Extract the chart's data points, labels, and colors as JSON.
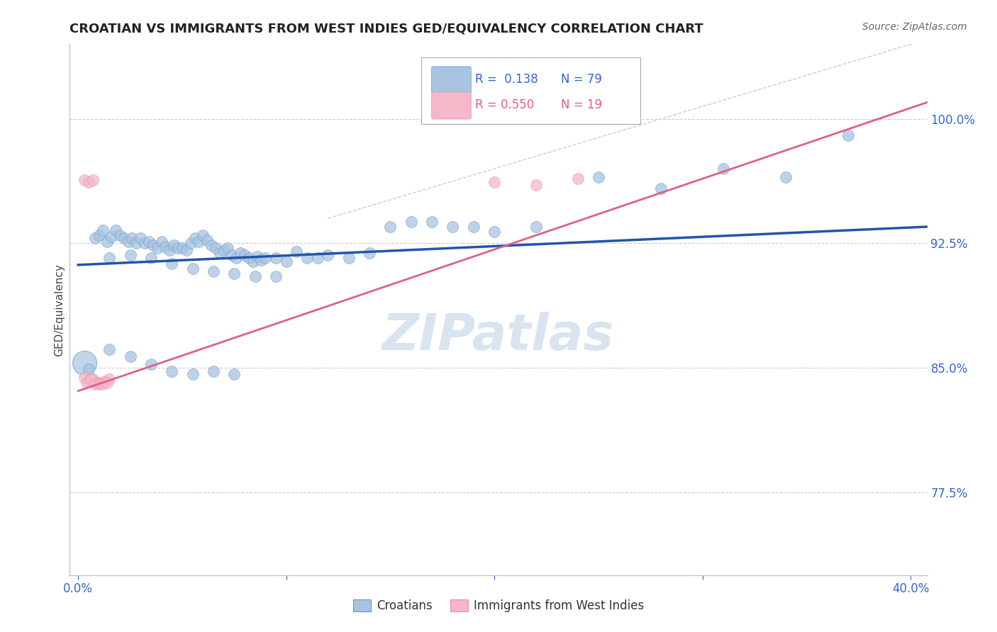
{
  "title": "CROATIAN VS IMMIGRANTS FROM WEST INDIES GED/EQUIVALENCY CORRELATION CHART",
  "source": "Source: ZipAtlas.com",
  "ylabel": "GED/Equivalency",
  "ytick_values": [
    0.775,
    0.85,
    0.925,
    1.0
  ],
  "ytick_labels": [
    "77.5%",
    "85.0%",
    "92.5%",
    "100.0%"
  ],
  "xlim": [
    -0.004,
    0.408
  ],
  "ylim": [
    0.725,
    1.045
  ],
  "blue_color": "#A8C4E0",
  "blue_edge_color": "#6699CC",
  "pink_color": "#F4B8C8",
  "pink_edge_color": "#E88FAA",
  "blue_line_color": "#2255AA",
  "pink_line_color": "#E06080",
  "diag_line_color": "#CCCCCC",
  "watermark_color": "#D8E4F0",
  "blue_line_x": [
    0.0,
    0.408
  ],
  "blue_line_y": [
    0.912,
    0.935
  ],
  "pink_line_x": [
    0.0,
    0.408
  ],
  "pink_line_y": [
    0.836,
    1.01
  ],
  "diag_line_x": [
    0.12,
    0.408
  ],
  "diag_line_y": [
    0.94,
    1.048
  ],
  "cr_x": [
    0.008,
    0.01,
    0.012,
    0.014,
    0.016,
    0.018,
    0.02,
    0.022,
    0.024,
    0.026,
    0.028,
    0.03,
    0.032,
    0.034,
    0.036,
    0.038,
    0.04,
    0.042,
    0.044,
    0.046,
    0.048,
    0.05,
    0.052,
    0.054,
    0.056,
    0.058,
    0.06,
    0.062,
    0.064,
    0.066,
    0.068,
    0.07,
    0.072,
    0.074,
    0.076,
    0.078,
    0.08,
    0.082,
    0.084,
    0.086,
    0.088,
    0.09,
    0.095,
    0.1,
    0.105,
    0.11,
    0.115,
    0.12,
    0.13,
    0.14,
    0.15,
    0.16,
    0.17,
    0.18,
    0.19,
    0.2,
    0.22,
    0.25,
    0.28,
    0.31,
    0.34,
    0.37,
    0.005,
    0.015,
    0.025,
    0.035,
    0.045,
    0.055,
    0.065,
    0.075,
    0.085,
    0.095,
    0.015,
    0.025,
    0.035,
    0.045,
    0.055,
    0.065,
    0.075
  ],
  "cr_y": [
    0.928,
    0.93,
    0.933,
    0.926,
    0.929,
    0.933,
    0.93,
    0.928,
    0.926,
    0.928,
    0.925,
    0.928,
    0.925,
    0.926,
    0.924,
    0.922,
    0.926,
    0.923,
    0.921,
    0.924,
    0.922,
    0.922,
    0.921,
    0.925,
    0.928,
    0.926,
    0.93,
    0.927,
    0.924,
    0.922,
    0.919,
    0.921,
    0.922,
    0.918,
    0.916,
    0.919,
    0.918,
    0.916,
    0.914,
    0.917,
    0.915,
    0.916,
    0.916,
    0.914,
    0.92,
    0.916,
    0.916,
    0.918,
    0.916,
    0.919,
    0.935,
    0.938,
    0.938,
    0.935,
    0.935,
    0.932,
    0.935,
    0.965,
    0.958,
    0.97,
    0.965,
    0.99,
    0.849,
    0.916,
    0.918,
    0.916,
    0.913,
    0.91,
    0.908,
    0.907,
    0.905,
    0.905,
    0.861,
    0.857,
    0.852,
    0.848,
    0.846,
    0.848,
    0.846
  ],
  "cr_large_x": [
    0.003
  ],
  "cr_large_y": [
    0.853
  ],
  "wi_x": [
    0.003,
    0.005,
    0.007,
    0.009,
    0.011,
    0.013,
    0.015,
    0.004,
    0.006,
    0.008,
    0.01,
    0.012,
    0.014,
    0.003,
    0.005,
    0.007,
    0.2,
    0.22,
    0.24
  ],
  "wi_y": [
    0.844,
    0.842,
    0.843,
    0.841,
    0.841,
    0.842,
    0.843,
    0.841,
    0.843,
    0.84,
    0.84,
    0.84,
    0.841,
    0.963,
    0.962,
    0.963,
    0.962,
    0.96,
    0.964
  ]
}
